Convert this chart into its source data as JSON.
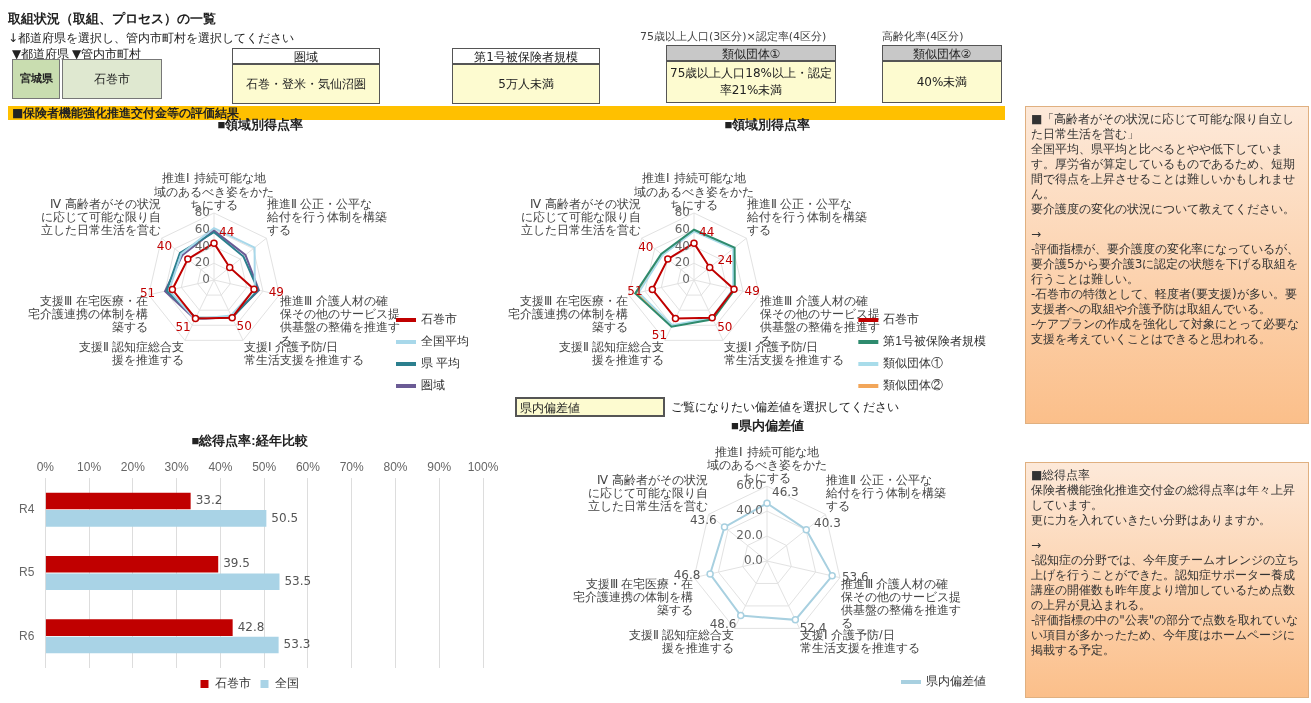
{
  "chart_data": [
    {
      "type": "other",
      "title": "取組状況（取組、プロセス）の一覧",
      "annotations": [
        "↓都道府県を選択し、管内市町村を選択してください",
        "▼都道府県",
        "▼管内市町村",
        "宮城県",
        "石巻市",
        "圏域",
        "石巻・登米・気仙沼圏",
        "第1号被保険者規模",
        "5万人未満",
        "75歳以上人口(3区分)×認定率(4区分)",
        "類似団体①",
        "75歳以上人口18%以上・認定率21%未満",
        "高齢化率(4区分)",
        "類似団体②",
        "40%未満",
        "■保険者機能強化推進交付金等の評価結果"
      ]
    },
    {
      "type": "radar",
      "title": "■領域別得点率",
      "categories": [
        "推進Ⅰ 持続可能な地域のあるべき姿をかたちにする",
        "推進Ⅱ 公正・公平な給付を行う体制を構築する",
        "推進Ⅲ 介護人材の確保その他のサービス提供基盤の整備を推進する",
        "支援Ⅰ 介護予防/日常生活支援を推進する",
        "支援Ⅱ 認知症総合支援を推進する",
        "支援Ⅲ 在宅医療・在宅介護連携の体制を構築する",
        "Ⅳ 高齢者がその状況に応じて可能な限り自立した日常生活を営む"
      ],
      "ylim": [
        0,
        80
      ],
      "yticks": [
        0,
        20,
        40,
        60,
        80
      ],
      "grid": true,
      "legend": "right",
      "marker": "none",
      "series": [
        {
          "name": "石巻市",
          "color": "#c00000",
          "marker": "circle",
          "values": [
            44,
            24,
            49,
            50,
            51,
            51,
            40
          ],
          "value_labels": [
            "44",
            null,
            "49",
            "50",
            "51",
            "51",
            "40"
          ]
        },
        {
          "name": "全国平均",
          "color": "#a8d8ea",
          "values": [
            62,
            62,
            50,
            47,
            52,
            55,
            50
          ]
        },
        {
          "name": "県 平均",
          "color": "#2b7f8e",
          "values": [
            57,
            45,
            54,
            50,
            50,
            58,
            52
          ]
        },
        {
          "name": "圏域",
          "color": "#6b5b95",
          "values": [
            59,
            48,
            55,
            49,
            52,
            60,
            48
          ]
        }
      ]
    },
    {
      "type": "radar",
      "title": "■領域別得点率",
      "categories": [
        "推進Ⅰ 持続可能な地域のあるべき姿をかたちにする",
        "推進Ⅱ 公正・公平な給付を行う体制を構築する",
        "推進Ⅲ 介護人材の確保その他のサービス提供基盤の整備を推進する",
        "支援Ⅰ 介護予防/日常生活支援を推進する",
        "支援Ⅱ 認知症総合支援を推進する",
        "支援Ⅲ 在宅医療・在宅介護連携の体制を構築する",
        "Ⅳ 高齢者がその状況に応じて可能な限り自立した日常生活を営む"
      ],
      "ylim": [
        0,
        80
      ],
      "yticks": [
        0,
        20,
        40,
        60,
        80
      ],
      "grid": true,
      "legend": "right",
      "marker": "none",
      "series": [
        {
          "name": "石巻市",
          "color": "#c00000",
          "marker": "circle",
          "values": [
            44,
            24,
            49,
            50,
            51,
            51,
            40
          ],
          "value_labels": [
            "44",
            "24",
            "49",
            "50",
            "51",
            "51",
            "40"
          ]
        },
        {
          "name": "第1号被保険者規模",
          "color": "#2e8b6e",
          "values": [
            60,
            62,
            50,
            52,
            62,
            72,
            50
          ]
        },
        {
          "name": "類似団体①",
          "color": "#a8dcea",
          "values": [
            58,
            60,
            48,
            50,
            60,
            68,
            48
          ]
        },
        {
          "name": "類似団体②",
          "color": "#f2a65a",
          "values": [
            59,
            61,
            49,
            51,
            61,
            70,
            49
          ]
        }
      ]
    },
    {
      "type": "bar",
      "title": "■総得点率:経年比較",
      "orientation": "horizontal",
      "categories": [
        "R4",
        "R5",
        "R6"
      ],
      "xlim": [
        0,
        100
      ],
      "xticks": [
        {
          "value": 0,
          "label": "0%"
        },
        {
          "value": 10,
          "label": "10%"
        },
        {
          "value": 20,
          "label": "20%"
        },
        {
          "value": 30,
          "label": "30%"
        },
        {
          "value": 40,
          "label": "40%"
        },
        {
          "value": 50,
          "label": "50%"
        },
        {
          "value": 60,
          "label": "60%"
        },
        {
          "value": 70,
          "label": "70%"
        },
        {
          "value": 80,
          "label": "80%"
        },
        {
          "value": 90,
          "label": "90%"
        },
        {
          "value": 100,
          "label": "100%"
        }
      ],
      "grid": "x",
      "legend": "bottom",
      "data_labels": true,
      "series": [
        {
          "name": "石巻市",
          "color": "#c00000",
          "values": [
            33.2,
            39.5,
            42.8
          ]
        },
        {
          "name": "全国",
          "color": "#a9d3e6",
          "values": [
            50.5,
            53.5,
            53.3
          ]
        }
      ]
    },
    {
      "type": "radar",
      "title": "■県内偏差値",
      "annotations": [
        "県内偏差値",
        "ご覧になりたい偏差値を選択してください"
      ],
      "categories": [
        "推進Ⅰ 持続可能な地域のあるべき姿をかたちにする",
        "推進Ⅱ 公正・公平な給付を行う体制を構築する",
        "推進Ⅲ 介護人材の確保その他のサービス提供基盤の整備を推進する",
        "支援Ⅰ 介護予防/日常生活支援を推進する",
        "支援Ⅱ 認知症総合支援を推進する",
        "支援Ⅲ 在宅医療・在宅介護連携の体制を構築する",
        "Ⅳ 高齢者がその状況に応じて可能な限り自立した日常生活を営む"
      ],
      "ylim": [
        0,
        60
      ],
      "yticks": [
        {
          "value": 0,
          "label": "0.0"
        },
        {
          "value": 20,
          "label": "20.0"
        },
        {
          "value": 40,
          "label": "40.0"
        },
        {
          "value": 60,
          "label": "60.0"
        }
      ],
      "grid": true,
      "legend": "bottom right",
      "marker": "circle",
      "data_labels": true,
      "series": [
        {
          "name": "県内偏差値",
          "color": "#a8d0e0",
          "values": [
            46.3,
            40.3,
            53.6,
            52.4,
            48.6,
            46.8,
            43.6
          ]
        }
      ]
    },
    {
      "type": "other",
      "annotations": [
        "■「高齢者がその状況に応じて可能な限り自立した日常生活を営む」",
        "全国平均、県平均と比べるとやや低下しています。厚労省が算定しているものであるため、短期間で得点を上昇させることは難しいかもしれません。",
        "要介護度の変化の状況について教えてください。",
        "→",
        "-評価指標が、要介護度の変化率になっているが、要介護5から要介護3に認定の状態を下げる取組を行うことは難しい。",
        "-石巻市の特徴として、軽度者(要支援)が多い。要支援者への取組や介護予防は取組んでいる。",
        "-ケアプランの作成を強化して対象にとって必要な支援を考えていくことはできると思われる。",
        "■総得点率",
        "保険者機能強化推進交付金の総得点率は年々上昇しています。",
        "更に力を入れていきたい分野はありますか。",
        "→",
        "-認知症の分野では、今年度チームオレンジの立ち上げを行うことができた。認知症サポーター養成講座の開催数も昨年度より増加しているため点数の上昇が見込まれる。",
        "-評価指標の中の\"公表\"の部分で点数を取れていない項目が多かったため、今年度はホームページに掲載する予定。"
      ]
    }
  ]
}
